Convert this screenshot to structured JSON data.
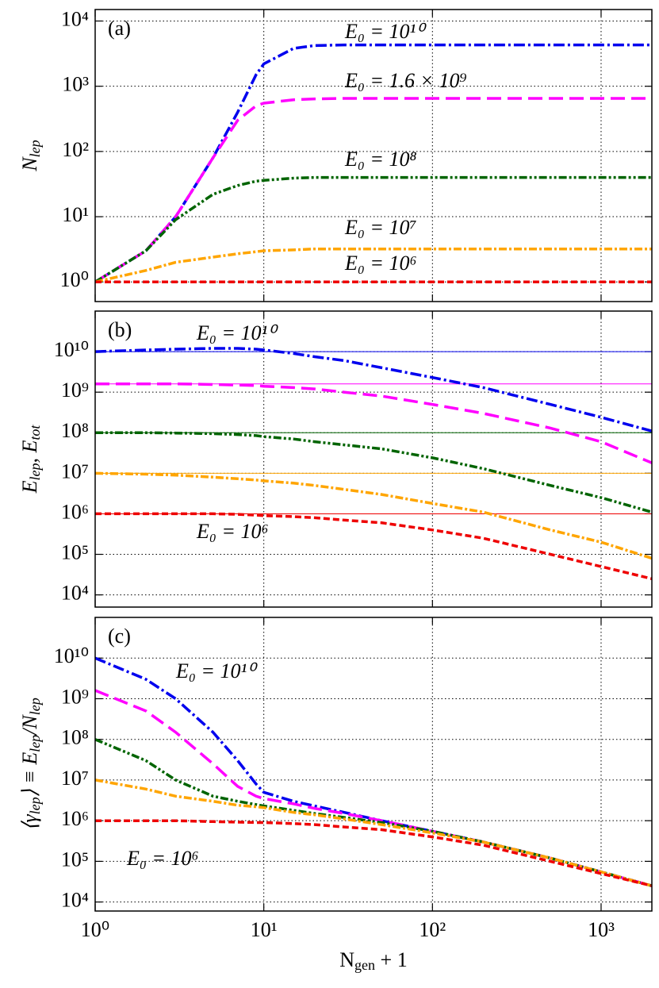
{
  "chart_data": [
    {
      "type": "line",
      "panel_label": "(a)",
      "xscale": "log",
      "yscale": "log",
      "grid": true,
      "sharex": true,
      "ylabel": [
        {
          "text": "N"
        },
        {
          "text": "lep",
          "sub": true
        }
      ],
      "ylim": [
        0.5,
        15000
      ],
      "yticks": [
        {
          "value": 1,
          "label": "10⁰"
        },
        {
          "value": 10,
          "label": "10¹"
        },
        {
          "value": 100,
          "label": "10²"
        },
        {
          "value": 1000,
          "label": "10³"
        },
        {
          "value": 10000,
          "label": "10⁴"
        }
      ],
      "x": [
        1,
        2,
        3,
        5,
        7,
        9,
        10,
        15,
        20,
        30,
        50,
        100,
        200,
        500,
        1000,
        2000
      ],
      "series": [
        {
          "color": "#0000ee",
          "values": [
            1,
            3,
            10,
            80,
            400,
            1500,
            2200,
            3800,
            4200,
            4300,
            4300,
            4300,
            4300,
            4300,
            4300,
            4300
          ]
        },
        {
          "color": "#ff00ff",
          "values": [
            1,
            3,
            10,
            80,
            300,
            500,
            550,
            620,
            640,
            650,
            650,
            650,
            650,
            650,
            650,
            650
          ]
        },
        {
          "color": "#006400",
          "values": [
            1,
            3,
            9,
            22,
            30,
            35,
            36,
            39,
            40,
            40,
            40,
            40,
            40,
            40,
            40,
            40
          ]
        },
        {
          "color": "#ffa500",
          "values": [
            1,
            1.5,
            2,
            2.4,
            2.7,
            2.9,
            3,
            3.1,
            3.2,
            3.2,
            3.2,
            3.2,
            3.2,
            3.2,
            3.2,
            3.2
          ]
        },
        {
          "color": "#ee0000",
          "values": [
            1,
            1,
            1,
            1,
            1,
            1,
            1,
            1,
            1,
            1,
            1,
            1,
            1,
            1,
            1,
            1
          ]
        }
      ],
      "annotations": [
        "E₀ = 10¹⁰",
        "E₀ = 1.6 × 10⁹",
        "E₀ = 10⁸",
        "E₀ = 10⁷",
        "E₀ = 10⁶"
      ]
    },
    {
      "type": "line",
      "panel_label": "(b)",
      "xscale": "log",
      "yscale": "log",
      "grid": true,
      "sharex": true,
      "ylabel": [
        {
          "text": "E"
        },
        {
          "text": "lep",
          "sub": true
        },
        {
          "text": ",  E"
        },
        {
          "text": "tot",
          "sub": true
        }
      ],
      "ylim": [
        5000,
        100000000000
      ],
      "yticks": [
        {
          "value": 10000,
          "label": "10⁴"
        },
        {
          "value": 100000,
          "label": "10⁵"
        },
        {
          "value": 1000000,
          "label": "10⁶"
        },
        {
          "value": 10000000,
          "label": "10⁷"
        },
        {
          "value": 100000000,
          "label": "10⁸"
        },
        {
          "value": 1000000000,
          "label": "10⁹"
        },
        {
          "value": 10000000000,
          "label": "10¹⁰"
        }
      ],
      "x": [
        1,
        2,
        3,
        5,
        7,
        9,
        10,
        15,
        20,
        30,
        50,
        100,
        200,
        500,
        1000,
        2000
      ],
      "series": [
        {
          "color": "#0000ee",
          "total": 10000000000,
          "values": [
            10000000000,
            11000000000,
            11500000000,
            12000000000,
            12000000000,
            11500000000,
            11000000000,
            9000000000,
            7500000000,
            6000000000,
            4000000000,
            2300000000,
            1300000000,
            500000000,
            240000000,
            110000000
          ]
        },
        {
          "color": "#ff00ff",
          "total": 1600000000,
          "values": [
            1600000000,
            1600000000,
            1600000000,
            1550000000,
            1500000000,
            1450000000,
            1400000000,
            1300000000,
            1200000000,
            1000000000,
            800000000,
            500000000,
            300000000,
            130000000,
            60000000,
            18000000
          ]
        },
        {
          "color": "#006400",
          "total": 100000000,
          "values": [
            100000000,
            100000000,
            98000000,
            95000000,
            90000000,
            85000000,
            80000000,
            70000000,
            60000000,
            50000000,
            40000000,
            24000000,
            13000000,
            5000000,
            2500000,
            1100000
          ]
        },
        {
          "color": "#ffa500",
          "total": 10000000,
          "values": [
            10000000,
            9500000,
            9000000,
            8000000,
            7300000,
            6800000,
            6500000,
            5700000,
            5000000,
            4000000,
            3000000,
            1800000,
            1100000,
            400000,
            200000,
            80000
          ]
        },
        {
          "color": "#ee0000",
          "total": 1000000,
          "values": [
            1000000,
            1000000,
            1000000,
            1000000,
            970000,
            930000,
            900000,
            850000,
            800000,
            700000,
            600000,
            400000,
            250000,
            100000,
            50000,
            25000
          ]
        }
      ],
      "annotations": [
        "E₀ = 10¹⁰",
        "E₀ = 10⁶"
      ]
    },
    {
      "type": "line",
      "panel_label": "(c)",
      "xscale": "log",
      "yscale": "log",
      "grid": true,
      "ylabel": [
        {
          "text": "⟨γ"
        },
        {
          "text": "lep",
          "sub": true
        },
        {
          "text": "⟩ ≡ E"
        },
        {
          "text": "lep",
          "sub": true
        },
        {
          "text": "/N"
        },
        {
          "text": "lep",
          "sub": true
        }
      ],
      "xlabel": [
        {
          "text": "N"
        },
        {
          "text": "gen",
          "sub": true
        },
        {
          "text": " + 1"
        }
      ],
      "xlim": [
        1,
        2000
      ],
      "xticks": [
        {
          "value": 1,
          "label": "10⁰"
        },
        {
          "value": 10,
          "label": "10¹"
        },
        {
          "value": 100,
          "label": "10²"
        },
        {
          "value": 1000,
          "label": "10³"
        }
      ],
      "ylim": [
        6000,
        100000000000
      ],
      "yticks": [
        {
          "value": 10000,
          "label": "10⁴"
        },
        {
          "value": 100000,
          "label": "10⁵"
        },
        {
          "value": 1000000,
          "label": "10⁶"
        },
        {
          "value": 10000000,
          "label": "10⁷"
        },
        {
          "value": 100000000,
          "label": "10⁸"
        },
        {
          "value": 1000000000,
          "label": "10⁹"
        },
        {
          "value": 10000000000,
          "label": "10¹⁰"
        }
      ],
      "x": [
        1,
        2,
        3,
        5,
        7,
        9,
        10,
        15,
        20,
        30,
        50,
        100,
        200,
        500,
        1000,
        2000
      ],
      "series": [
        {
          "color": "#0000ee",
          "values": [
            10000000000,
            3000000000,
            1000000000,
            150000000,
            30000000,
            8000000,
            5000000,
            3000000,
            2300000,
            1600000,
            1000000,
            550000,
            300000,
            120000,
            55000,
            25000
          ]
        },
        {
          "color": "#ff00ff",
          "values": [
            1600000000,
            500000000,
            150000000,
            25000000,
            7000000,
            4000000,
            3500000,
            2600000,
            2000000,
            1500000,
            1000000,
            550000,
            300000,
            120000,
            55000,
            25000
          ]
        },
        {
          "color": "#006400",
          "values": [
            100000000,
            30000000,
            10000000,
            4000000,
            3000000,
            2500000,
            2300000,
            1800000,
            1500000,
            1200000,
            900000,
            550000,
            300000,
            120000,
            55000,
            25000
          ]
        },
        {
          "color": "#ffa500",
          "values": [
            10000000,
            6000000,
            4000000,
            3000000,
            2400000,
            2200000,
            2100000,
            1600000,
            1400000,
            1100000,
            800000,
            500000,
            300000,
            120000,
            55000,
            25000
          ]
        },
        {
          "color": "#ee0000",
          "values": [
            1000000,
            1000000,
            1000000,
            950000,
            920000,
            900000,
            900000,
            850000,
            800000,
            700000,
            600000,
            400000,
            250000,
            100000,
            50000,
            25000
          ]
        }
      ],
      "annotations": [
        "E₀ = 10¹⁰",
        "E₀ = 10⁶"
      ]
    }
  ]
}
